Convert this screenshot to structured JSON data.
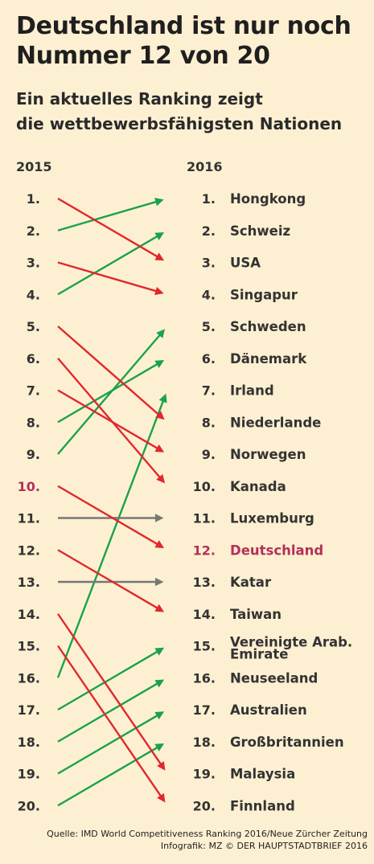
{
  "title_line1": "Deutschland ist nur noch",
  "title_line2": "Nummer 12 von 20",
  "subtitle_line1": "Ein aktuelles Ranking zeigt",
  "subtitle_line2": "die wettbewerbsfähigsten Nationen",
  "source_line1": "Quelle: IMD World Competitiveness Ranking 2016/Neue Zürcher Zeitung",
  "source_line2": "Infografik: MZ © DER HAUPTSTADTBRIEF 2016",
  "colors": {
    "down": "#e0282c",
    "up": "#1aa24a",
    "same": "#777777",
    "highlight": "#b4305a",
    "text": "#333333",
    "background": "#fdf0d2"
  },
  "chart_data": {
    "type": "slope",
    "years": [
      "2015",
      "2016"
    ],
    "rank_labels": [
      "1.",
      "2.",
      "3.",
      "4.",
      "5.",
      "6.",
      "7.",
      "8.",
      "9.",
      "10.",
      "11.",
      "12.",
      "13.",
      "14.",
      "15.",
      "16.",
      "17.",
      "18.",
      "19.",
      "20."
    ],
    "countries_2016": [
      "Hongkong",
      "Schweiz",
      "USA",
      "Singapur",
      "Schweden",
      "Dänemark",
      "Irland",
      "Niederlande",
      "Norwegen",
      "Kanada",
      "Luxemburg",
      "Deutschland",
      "Katar",
      "Taiwan",
      "Vereinigte Arab. Emirate",
      "Neuseeland",
      "Australien",
      "Großbritannien",
      "Malaysia",
      "Finnland"
    ],
    "rank_2015": [
      2,
      4,
      1,
      3,
      9,
      8,
      16,
      5,
      7,
      6,
      11,
      10,
      13,
      12,
      17,
      18,
      19,
      20,
      14,
      15
    ],
    "rank_2016": [
      1,
      2,
      3,
      4,
      5,
      6,
      7,
      8,
      9,
      10,
      11,
      12,
      13,
      14,
      15,
      16,
      17,
      18,
      19,
      20
    ],
    "highlight_country": "Deutschland",
    "highlight_rank_2015": 10,
    "highlight_rank_2016": 12
  }
}
